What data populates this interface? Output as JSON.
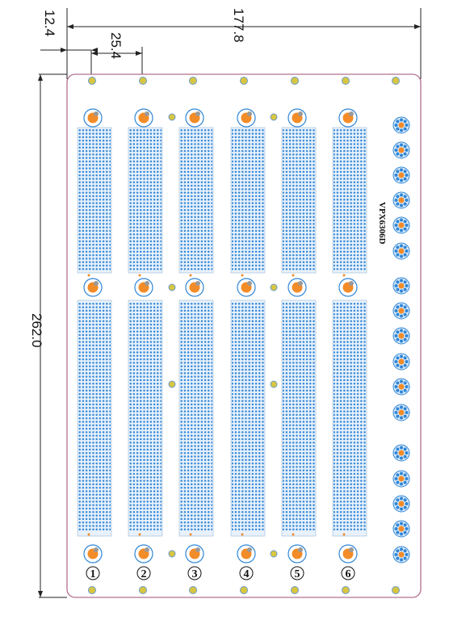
{
  "dimensions": {
    "overall_width": "177.8",
    "edge_offset": "12.4",
    "slot_pitch": "25.4",
    "overall_height": "262.0"
  },
  "board": {
    "label": "VPX6306D"
  },
  "slots": [
    {
      "number": "①"
    },
    {
      "number": "②"
    },
    {
      "number": "③"
    },
    {
      "number": "④"
    },
    {
      "number": "⑤"
    },
    {
      "number": "⑥"
    }
  ],
  "colors": {
    "board_outline": "#b07090",
    "connector_pin": "#2f86d6",
    "connector_body": "#e8f1fb",
    "mount_pad": "#f28c28",
    "mount_ring": "#2f86d6",
    "screw_hole": "#d8c640",
    "power_connector": "#2f86d6"
  }
}
